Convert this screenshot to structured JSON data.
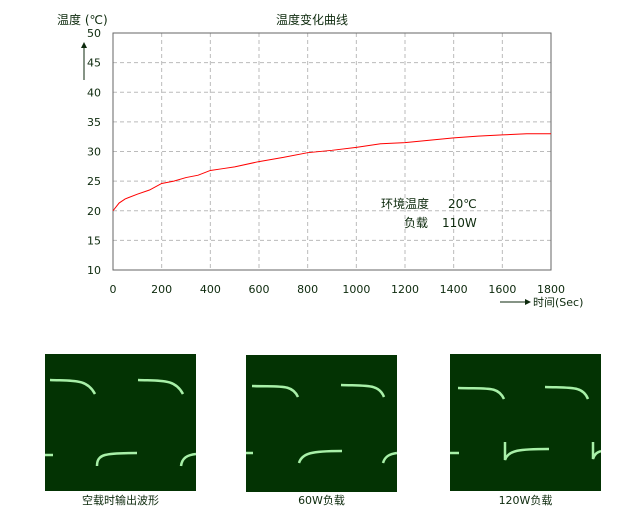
{
  "chart_data": {
    "type": "line",
    "title": "温度变化曲线",
    "ylabel": "温度 (℃)",
    "xlabel": "时间(Sec)",
    "xlim": [
      0,
      1800
    ],
    "ylim": [
      10,
      50
    ],
    "xticks": [
      0,
      200,
      400,
      600,
      800,
      1000,
      1200,
      1400,
      1600,
      1800
    ],
    "yticks": [
      10,
      15,
      20,
      25,
      30,
      35,
      40,
      45,
      50
    ],
    "grid": true,
    "series": [
      {
        "color": "#ff0000",
        "x": [
          0,
          25,
          50,
          100,
          150,
          200,
          250,
          300,
          350,
          400,
          450,
          500,
          600,
          700,
          800,
          900,
          1000,
          1100,
          1200,
          1300,
          1400,
          1500,
          1600,
          1700,
          1800
        ],
        "y": [
          20,
          21.3,
          22,
          22.8,
          23.5,
          24.6,
          25,
          25.6,
          26,
          26.8,
          27.1,
          27.4,
          28.3,
          29,
          29.8,
          30.2,
          30.7,
          31.3,
          31.5,
          31.9,
          32.3,
          32.6,
          32.8,
          33,
          33
        ]
      }
    ],
    "annotations": [
      {
        "label": "环境温度",
        "value": "20℃"
      },
      {
        "label": "负载",
        "value": "110W"
      }
    ]
  },
  "waveforms": [
    {
      "caption": "空载时输出波形"
    },
    {
      "caption": "60W负载"
    },
    {
      "caption": "120W负载"
    }
  ]
}
